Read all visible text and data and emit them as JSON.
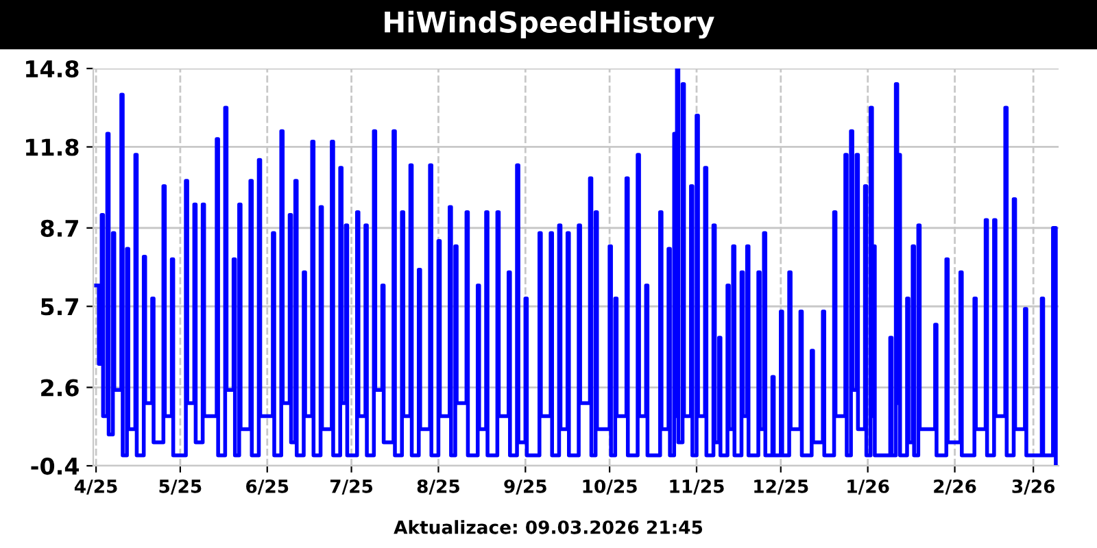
{
  "chart_data": {
    "type": "step",
    "title": "HiWindSpeedHistory",
    "annotations": [
      "Aktualizace: 09.03.2026 21:45"
    ],
    "x": [
      "2025-04-01",
      "2025-04-02",
      "2025-04-03",
      "2025-04-03T12:00",
      "2025-04-05",
      "2025-04-05T12:00",
      "2025-04-07",
      "2025-04-07T12:00",
      "2025-04-10",
      "2025-04-10T12:00",
      "2025-04-12",
      "2025-04-12T12:00",
      "2025-04-15",
      "2025-04-15T12:00",
      "2025-04-18",
      "2025-04-18T12:00",
      "2025-04-21",
      "2025-04-21T12:00",
      "2025-04-25",
      "2025-04-25T12:00",
      "2025-04-28",
      "2025-04-28T12:00",
      "2025-05-03",
      "2025-05-03T12:00",
      "2025-05-06",
      "2025-05-06T12:00",
      "2025-05-09",
      "2025-05-09T12:00",
      "2025-05-14",
      "2025-05-14T12:00",
      "2025-05-17",
      "2025-05-17T12:00",
      "2025-05-20",
      "2025-05-20T12:00",
      "2025-05-22",
      "2025-05-22T12:00",
      "2025-05-26",
      "2025-05-26T12:00",
      "2025-05-29",
      "2025-05-29T12:00",
      "2025-06-03",
      "2025-06-03T12:00",
      "2025-06-06",
      "2025-06-06T12:00",
      "2025-06-09",
      "2025-06-09T12:00",
      "2025-06-11",
      "2025-06-11T12:00",
      "2025-06-14",
      "2025-06-14T12:00",
      "2025-06-17",
      "2025-06-17T12:00",
      "2025-06-20",
      "2025-06-20T12:00",
      "2025-06-24",
      "2025-06-24T12:00",
      "2025-06-27",
      "2025-06-27T12:00",
      "2025-06-29",
      "2025-06-29T12:00",
      "2025-07-03",
      "2025-07-03T12:00",
      "2025-07-06",
      "2025-07-06T12:00",
      "2025-07-09",
      "2025-07-09T12:00",
      "2025-07-12",
      "2025-07-12T12:00",
      "2025-07-16",
      "2025-07-16T12:00",
      "2025-07-19",
      "2025-07-19T12:00",
      "2025-07-22",
      "2025-07-22T12:00",
      "2025-07-25",
      "2025-07-25T12:00",
      "2025-07-29",
      "2025-07-29T12:00",
      "2025-08-01",
      "2025-08-01T12:00",
      "2025-08-05",
      "2025-08-05T12:00",
      "2025-08-07",
      "2025-08-07T12:00",
      "2025-08-11",
      "2025-08-11T12:00",
      "2025-08-15",
      "2025-08-15T12:00",
      "2025-08-18",
      "2025-08-18T12:00",
      "2025-08-22",
      "2025-08-22T12:00",
      "2025-08-26",
      "2025-08-26T12:00",
      "2025-08-29",
      "2025-08-29T12:00",
      "2025-09-01",
      "2025-09-01T12:00",
      "2025-09-06",
      "2025-09-06T12:00",
      "2025-09-10",
      "2025-09-10T12:00",
      "2025-09-13",
      "2025-09-13T12:00",
      "2025-09-16",
      "2025-09-16T12:00",
      "2025-09-20",
      "2025-09-20T12:00",
      "2025-09-24",
      "2025-09-24T12:00",
      "2025-09-26",
      "2025-09-26T12:00",
      "2025-10-01",
      "2025-10-01T12:00",
      "2025-10-03",
      "2025-10-03T12:00",
      "2025-10-07",
      "2025-10-07T12:00",
      "2025-10-11",
      "2025-10-11T12:00",
      "2025-10-14",
      "2025-10-14T12:00",
      "2025-10-19",
      "2025-10-19T12:00",
      "2025-10-22",
      "2025-10-22T12:00",
      "2025-10-24",
      "2025-10-24T12:00",
      "2025-10-25",
      "2025-10-25T12:00",
      "2025-10-27",
      "2025-10-27T12:00",
      "2025-10-30",
      "2025-10-30T12:00",
      "2025-11-01",
      "2025-11-01T12:00",
      "2025-11-04",
      "2025-11-04T12:00",
      "2025-11-07",
      "2025-11-07T12:00",
      "2025-11-09",
      "2025-11-09T12:00",
      "2025-11-12",
      "2025-11-12T12:00",
      "2025-11-14",
      "2025-11-14T12:00",
      "2025-11-17",
      "2025-11-17T12:00",
      "2025-11-19",
      "2025-11-19T12:00",
      "2025-11-23",
      "2025-11-23T12:00",
      "2025-11-25",
      "2025-11-25T12:00",
      "2025-11-28",
      "2025-11-28T12:00",
      "2025-12-01",
      "2025-12-01T12:00",
      "2025-12-04",
      "2025-12-04T12:00",
      "2025-12-08",
      "2025-12-08T12:00",
      "2025-12-12",
      "2025-12-12T12:00",
      "2025-12-16",
      "2025-12-16T12:00",
      "2025-12-20",
      "2025-12-20T12:00",
      "2025-12-24",
      "2025-12-24T12:00",
      "2025-12-26",
      "2025-12-26T12:00",
      "2025-12-28",
      "2025-12-28T12:00",
      "2025-12-31",
      "2025-12-31T12:00",
      "2026-01-02",
      "2026-01-02T12:00",
      "2026-01-03",
      "2026-01-03T12:00",
      "2026-01-09",
      "2026-01-09T12:00",
      "2026-01-11",
      "2026-01-11T12:00",
      "2026-01-12",
      "2026-01-12T12:00",
      "2026-01-15",
      "2026-01-15T12:00",
      "2026-01-17",
      "2026-01-17T12:00",
      "2026-01-19",
      "2026-01-19T12:00",
      "2026-01-25",
      "2026-01-25T12:00",
      "2026-01-29",
      "2026-01-29T12:00",
      "2026-02-03",
      "2026-02-03T12:00",
      "2026-02-08",
      "2026-02-08T12:00",
      "2026-02-12",
      "2026-02-12T12:00",
      "2026-02-15",
      "2026-02-15T12:00",
      "2026-02-19",
      "2026-02-19T12:00",
      "2026-02-22",
      "2026-02-22T12:00",
      "2026-02-26",
      "2026-02-26T12:00",
      "2026-03-04",
      "2026-03-04T12:00",
      "2026-03-08",
      "2026-03-09"
    ],
    "series": [
      {
        "color": "#0000ff",
        "values": [
          6.5,
          3.5,
          9.2,
          1.5,
          12.3,
          0.8,
          8.5,
          2.5,
          13.8,
          0.0,
          7.9,
          1.0,
          11.5,
          0.0,
          7.6,
          2.0,
          6.0,
          0.5,
          10.3,
          1.5,
          7.5,
          0.0,
          10.5,
          2.0,
          9.6,
          0.5,
          9.6,
          1.5,
          12.1,
          0.0,
          13.3,
          2.5,
          7.5,
          0.0,
          9.6,
          1.0,
          10.5,
          0.0,
          11.3,
          1.5,
          8.5,
          0.0,
          12.4,
          2.0,
          9.2,
          0.5,
          10.5,
          0.0,
          7.0,
          1.5,
          12.0,
          0.0,
          9.5,
          1.0,
          12.0,
          0.0,
          11.0,
          2.0,
          8.8,
          0.0,
          9.3,
          1.5,
          8.8,
          0.0,
          12.4,
          2.5,
          6.5,
          0.5,
          12.4,
          0.0,
          9.3,
          1.5,
          11.1,
          0.0,
          7.1,
          1.0,
          11.1,
          0.0,
          8.2,
          1.5,
          9.5,
          0.0,
          8.0,
          2.0,
          9.3,
          0.0,
          6.5,
          1.0,
          9.3,
          0.0,
          9.3,
          1.5,
          7.0,
          0.0,
          11.1,
          0.5,
          6.0,
          0.0,
          8.5,
          1.5,
          8.5,
          0.0,
          8.8,
          1.0,
          8.5,
          0.0,
          8.8,
          2.0,
          10.6,
          0.0,
          9.3,
          1.0,
          8.0,
          0.0,
          6.0,
          1.5,
          10.6,
          0.0,
          11.5,
          1.5,
          6.5,
          0.0,
          9.3,
          1.0,
          7.9,
          0.0,
          12.3,
          1.5,
          14.8,
          0.5,
          14.2,
          1.5,
          10.3,
          0.0,
          13.0,
          1.5,
          11.0,
          0.0,
          8.8,
          0.5,
          4.5,
          0.0,
          6.5,
          1.0,
          8.0,
          0.0,
          7.0,
          1.5,
          8.0,
          0.0,
          7.0,
          1.0,
          8.5,
          0.0,
          3.0,
          0.0,
          5.5,
          0.0,
          7.0,
          1.0,
          5.5,
          0.0,
          4.0,
          0.5,
          5.5,
          0.0,
          9.3,
          1.5,
          11.5,
          0.0,
          12.4,
          2.5,
          11.5,
          1.0,
          10.3,
          0.0,
          13.3,
          1.5,
          8.0,
          0.0,
          4.5,
          0.0,
          14.2,
          2.0,
          11.5,
          0.0,
          6.0,
          0.5,
          8.0,
          0.0,
          8.8,
          1.0,
          5.0,
          0.0,
          7.5,
          0.5,
          7.0,
          0.0,
          6.0,
          1.0,
          9.0,
          0.0,
          9.0,
          1.5,
          13.3,
          0.0,
          9.8,
          1.0,
          5.6,
          0.0,
          6.0,
          0.0,
          8.7,
          -0.4
        ]
      }
    ],
    "xlim": [
      "2025-03-31",
      "2026-03-10"
    ],
    "xticks": [
      {
        "value": "2025-04-01",
        "label": "4/25"
      },
      {
        "value": "2025-05-01",
        "label": "5/25"
      },
      {
        "value": "2025-06-01",
        "label": "6/25"
      },
      {
        "value": "2025-07-01",
        "label": "7/25"
      },
      {
        "value": "2025-08-01",
        "label": "8/25"
      },
      {
        "value": "2025-09-01",
        "label": "9/25"
      },
      {
        "value": "2025-10-01",
        "label": "10/25"
      },
      {
        "value": "2025-11-01",
        "label": "11/25"
      },
      {
        "value": "2025-12-01",
        "label": "12/25"
      },
      {
        "value": "2026-01-01",
        "label": "1/26"
      },
      {
        "value": "2026-02-01",
        "label": "2/26"
      },
      {
        "value": "2026-03-01",
        "label": "3/26"
      }
    ],
    "ylim": [
      -0.4,
      14.8
    ],
    "yticks": [
      -0.4,
      2.6,
      5.7,
      8.7,
      11.8,
      14.8
    ],
    "grid": true
  }
}
